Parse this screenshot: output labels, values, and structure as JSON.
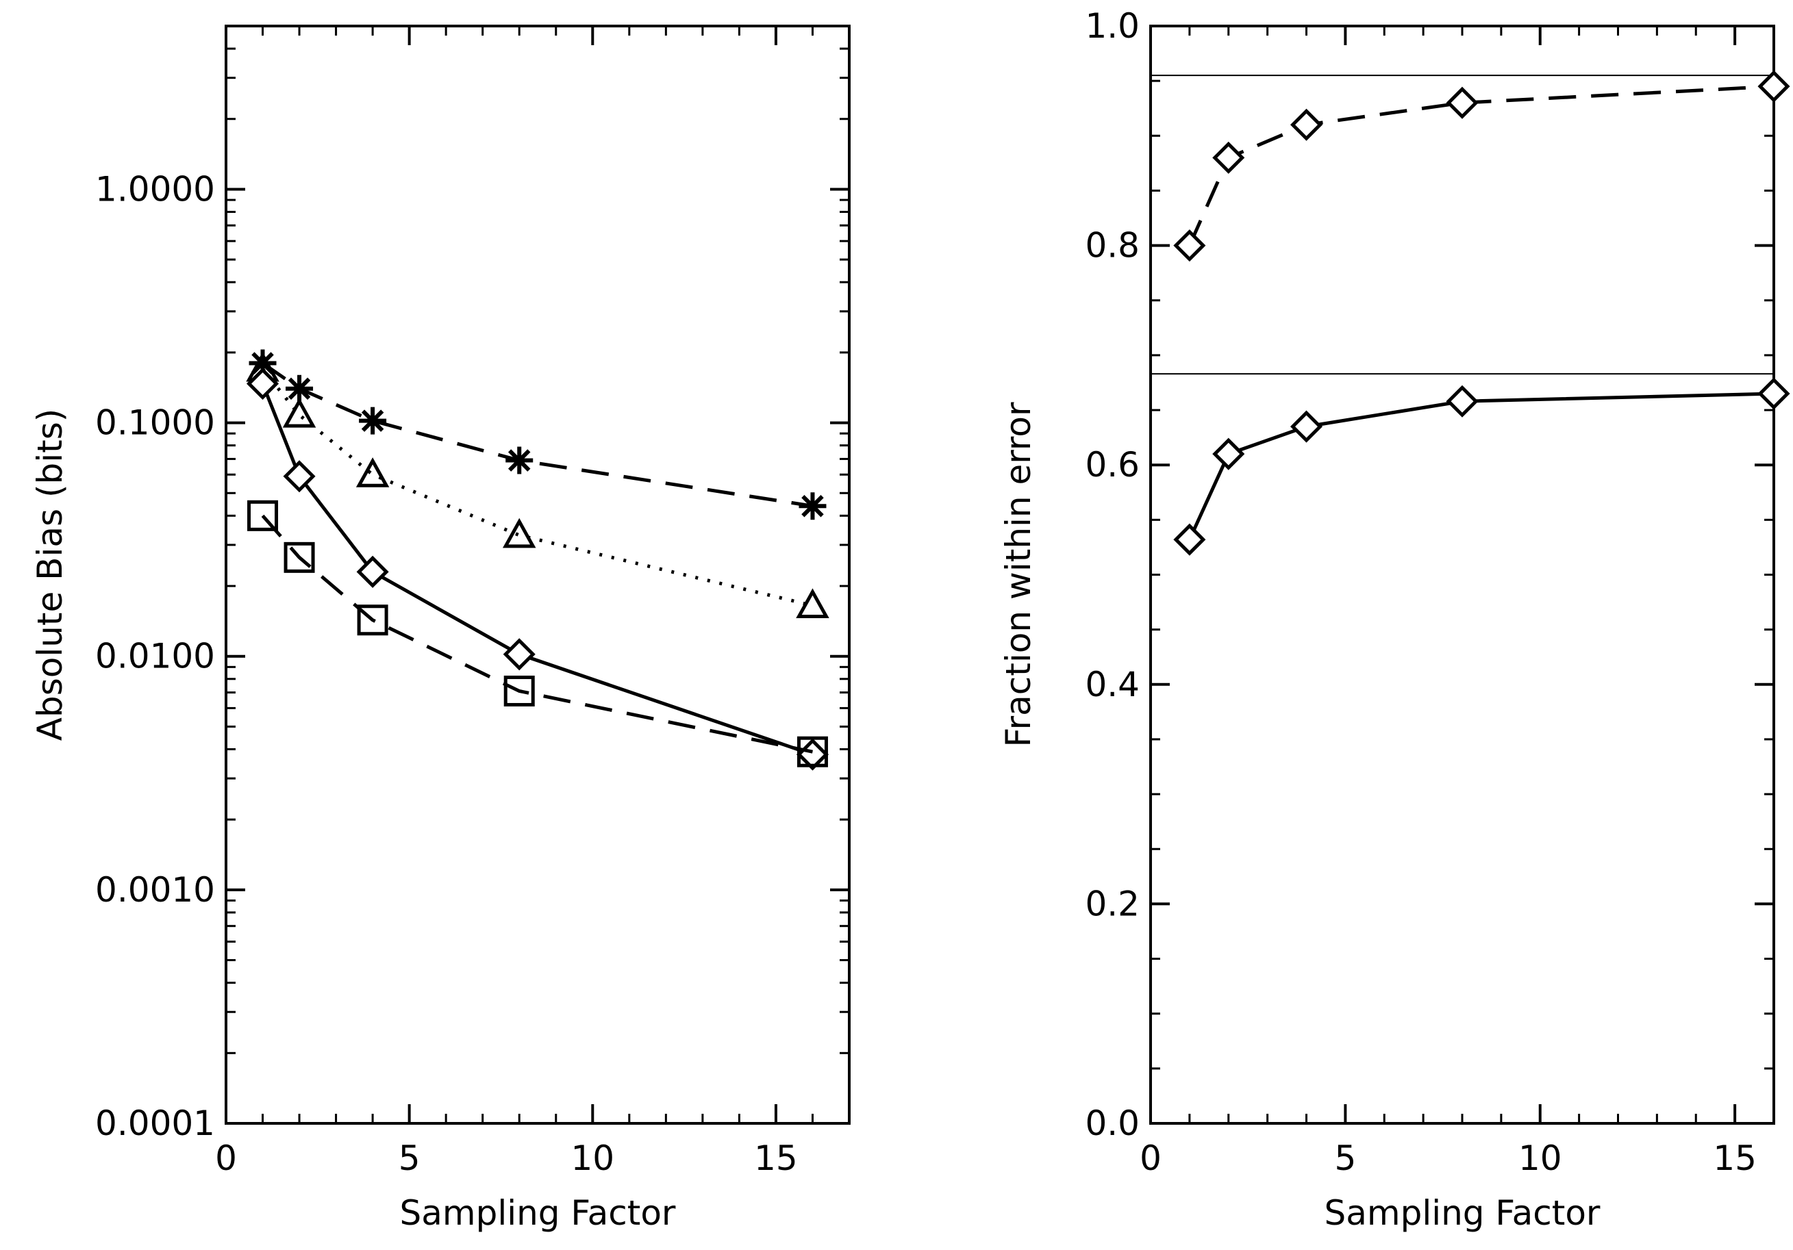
{
  "chart_data": [
    {
      "type": "line",
      "xlabel": "Sampling Factor",
      "ylabel": "Absolute Bias (bits)",
      "yscale": "log",
      "xlim": [
        0,
        17
      ],
      "ylim": [
        0.0001,
        5
      ],
      "xticks": [
        0,
        5,
        10,
        15
      ],
      "xtick_labels": [
        "0",
        "5",
        "10",
        "15"
      ],
      "yticks": [
        0.0001,
        0.001,
        0.01,
        0.1,
        1
      ],
      "ytick_labels": [
        "0.0001",
        "0.0010",
        "0.0100",
        "0.1000",
        "1.0000"
      ],
      "series": [
        {
          "x": [
            1,
            2,
            4,
            8,
            16
          ],
          "values": [
            0.18,
            0.14,
            0.102,
            0.069,
            0.044
          ],
          "marker": "asterisk",
          "line": "dashed"
        },
        {
          "x": [
            1,
            2,
            4,
            8,
            16
          ],
          "values": [
            0.17,
            0.108,
            0.06,
            0.033,
            0.0165
          ],
          "marker": "triangle",
          "line": "dotted"
        },
        {
          "x": [
            1,
            2,
            4,
            8,
            16
          ],
          "values": [
            0.147,
            0.059,
            0.023,
            0.0102,
            0.0038
          ],
          "marker": "diamond",
          "line": "solid"
        },
        {
          "x": [
            1,
            2,
            4,
            8,
            16
          ],
          "values": [
            0.04,
            0.0265,
            0.0143,
            0.0071,
            0.0039
          ],
          "marker": "square",
          "line": "dashed"
        }
      ]
    },
    {
      "type": "line",
      "xlabel": "Sampling Factor",
      "ylabel": "Fraction within error",
      "xlim": [
        0,
        16
      ],
      "ylim": [
        0,
        1.0
      ],
      "xticks": [
        0,
        5,
        10,
        15
      ],
      "xtick_labels": [
        "0",
        "5",
        "10",
        "15"
      ],
      "yticks": [
        0,
        0.2,
        0.4,
        0.6,
        0.8,
        1.0
      ],
      "ytick_labels": [
        "0.0",
        "0.2",
        "0.4",
        "0.6",
        "0.8",
        "1.0"
      ],
      "reference_lines": [
        0.955,
        0.683
      ],
      "series": [
        {
          "x": [
            1,
            2,
            4,
            8,
            16
          ],
          "values": [
            0.8,
            0.88,
            0.91,
            0.93,
            0.945
          ],
          "marker": "diamond",
          "line": "dashed"
        },
        {
          "x": [
            1,
            2,
            4,
            8,
            16
          ],
          "values": [
            0.532,
            0.61,
            0.635,
            0.658,
            0.665
          ],
          "marker": "diamond",
          "line": "solid"
        }
      ]
    }
  ]
}
